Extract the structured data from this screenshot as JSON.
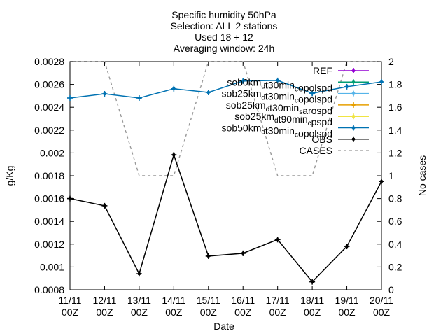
{
  "chart_data": {
    "type": "line",
    "title_lines": [
      "Specific humidity 50hPa",
      "Selection: ALL       2 stations",
      "Used 18 + 12",
      "Averaging window: 24h"
    ],
    "xlabel": "Date",
    "ylabel": "g/Kg",
    "y2label": "No cases",
    "categories": [
      "11/11 00Z",
      "12/11 00Z",
      "13/11 00Z",
      "14/11 00Z",
      "15/11 00Z",
      "16/11 00Z",
      "17/11 00Z",
      "18/11 00Z",
      "19/11 00Z",
      "20/11 00Z"
    ],
    "x_tick_labels": [
      [
        "11/11",
        "00Z"
      ],
      [
        "12/11",
        "00Z"
      ],
      [
        "13/11",
        "00Z"
      ],
      [
        "14/11",
        "00Z"
      ],
      [
        "15/11",
        "00Z"
      ],
      [
        "16/11",
        "00Z"
      ],
      [
        "17/11",
        "00Z"
      ],
      [
        "18/11",
        "00Z"
      ],
      [
        "19/11",
        "00Z"
      ],
      [
        "20/11",
        "00Z"
      ]
    ],
    "ylim": [
      0.0008,
      0.0028
    ],
    "y_ticks": [
      "0.0008",
      "0.001",
      "0.0012",
      "0.0014",
      "0.0016",
      "0.0018",
      "0.002",
      "0.0022",
      "0.0024",
      "0.0026",
      "0.0028"
    ],
    "y2lim": [
      0,
      2
    ],
    "y2_ticks": [
      "0",
      "0.2",
      "0.4",
      "0.6",
      "0.8",
      "1",
      "1.2",
      "1.4",
      "1.6",
      "1.8",
      "2"
    ],
    "legend_position": "top-right",
    "grid": false,
    "series": [
      {
        "name_parts": [
          [
            "REF",
            ""
          ]
        ],
        "color": "#9400d3",
        "marker": "plus",
        "axis": "y1",
        "values": [
          null,
          null,
          null,
          null,
          null,
          null,
          null,
          null,
          null,
          null
        ]
      },
      {
        "name_parts": [
          [
            "sob0km",
            "d"
          ],
          [
            "t30min",
            "c"
          ],
          [
            "opolspd",
            ""
          ]
        ],
        "color": "#009e73",
        "marker": "plus",
        "axis": "y1",
        "values": [
          null,
          null,
          null,
          null,
          null,
          null,
          null,
          null,
          null,
          null
        ]
      },
      {
        "name_parts": [
          [
            "sob25km",
            "d"
          ],
          [
            "t30min",
            "c"
          ],
          [
            "opolspd",
            ""
          ]
        ],
        "color": "#56b4e9",
        "marker": "plus",
        "axis": "y1",
        "values": [
          null,
          null,
          null,
          null,
          null,
          null,
          null,
          null,
          null,
          null
        ]
      },
      {
        "name_parts": [
          [
            "sob25km",
            "d"
          ],
          [
            "t30min",
            "s"
          ],
          [
            "arospd",
            ""
          ]
        ],
        "color": "#e69f00",
        "marker": "plus",
        "axis": "y1",
        "values": [
          null,
          null,
          null,
          null,
          null,
          null,
          null,
          null,
          null,
          null
        ]
      },
      {
        "name_parts": [
          [
            "sob25km",
            "d"
          ],
          [
            "t90min",
            "c"
          ],
          [
            "pspd",
            ""
          ]
        ],
        "color": "#f0e442",
        "marker": "plus",
        "axis": "y1",
        "values": [
          null,
          null,
          null,
          null,
          null,
          null,
          null,
          null,
          null,
          null
        ]
      },
      {
        "name_parts": [
          [
            "sob50km",
            "d"
          ],
          [
            "t30min",
            "c"
          ],
          [
            "opolspd",
            ""
          ]
        ],
        "color": "#0072b2",
        "marker": "plus",
        "axis": "y1",
        "values": [
          0.002481,
          0.002518,
          0.002481,
          0.002562,
          0.00253,
          0.00263,
          0.002635,
          0.002522,
          0.00258,
          0.002622
        ]
      },
      {
        "name_parts": [
          [
            "OBS",
            ""
          ]
        ],
        "color": "#000000",
        "marker": "plus",
        "axis": "y1",
        "values": [
          0.0016,
          0.001537,
          0.00094,
          0.001983,
          0.001095,
          0.00112,
          0.00124,
          0.00087,
          0.00118,
          0.00175
        ]
      },
      {
        "name_parts": [
          [
            "CASES",
            ""
          ]
        ],
        "color": "#999999",
        "marker": "none",
        "dashed": true,
        "axis": "y2",
        "values": [
          2,
          2,
          1,
          1,
          2,
          2,
          1,
          1,
          2,
          2
        ]
      }
    ]
  }
}
